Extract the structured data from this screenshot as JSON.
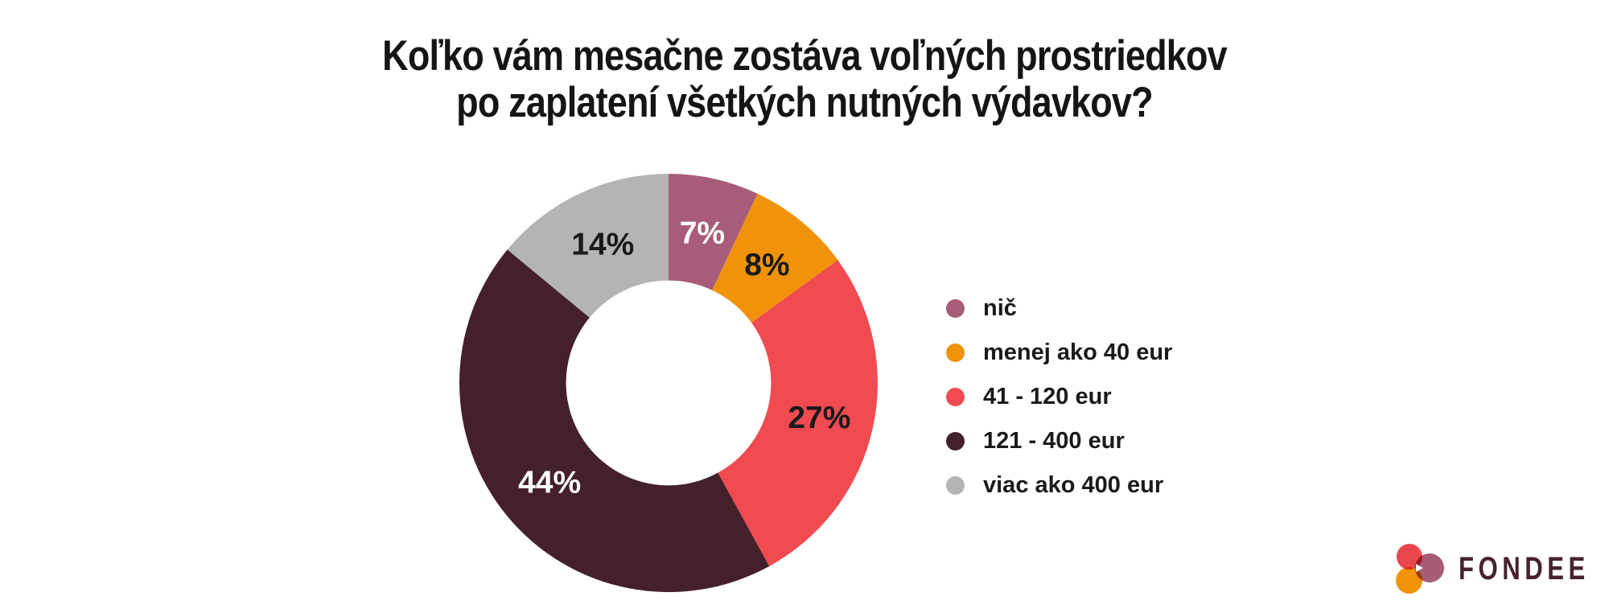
{
  "title": {
    "line1": "Koľko vám mesačne zostáva voľných prostriedkov",
    "line2": "po zaplatení všetkých nutných výdavkov?"
  },
  "chart_data": {
    "type": "pie",
    "subtype": "donut",
    "title": "Koľko vám mesačne zostáva voľných prostriedkov po zaplatení všetkých nutných výdavkov?",
    "start_angle_deg": 0,
    "direction": "clockwise",
    "inner_radius_ratio": 0.49,
    "legend_position": "right",
    "slices": [
      {
        "label": "nič",
        "value": 7,
        "display": "7%",
        "color": "#A75D79",
        "label_color": "#FFFFFF"
      },
      {
        "label": "menej ako 40 eur",
        "value": 8,
        "display": "8%",
        "color": "#F0930A",
        "label_color": "#1A1A1A"
      },
      {
        "label": "41 - 120 eur",
        "value": 27,
        "display": "27%",
        "color": "#EF4B50",
        "label_color": "#1A1A1A"
      },
      {
        "label": "121 - 400 eur",
        "value": 44,
        "display": "44%",
        "color": "#44212A",
        "label_color": "#FFFFFF"
      },
      {
        "label": "viac ako 400 eur",
        "value": 14,
        "display": "14%",
        "color": "#B5B4B4",
        "label_color": "#1A1A1A"
      }
    ]
  },
  "logo": {
    "text": "FONDEE",
    "text_color": "#46232C",
    "mark_colors": {
      "red": "#E9474D",
      "orange": "#F0930A",
      "mauve": "#A45C77"
    }
  }
}
